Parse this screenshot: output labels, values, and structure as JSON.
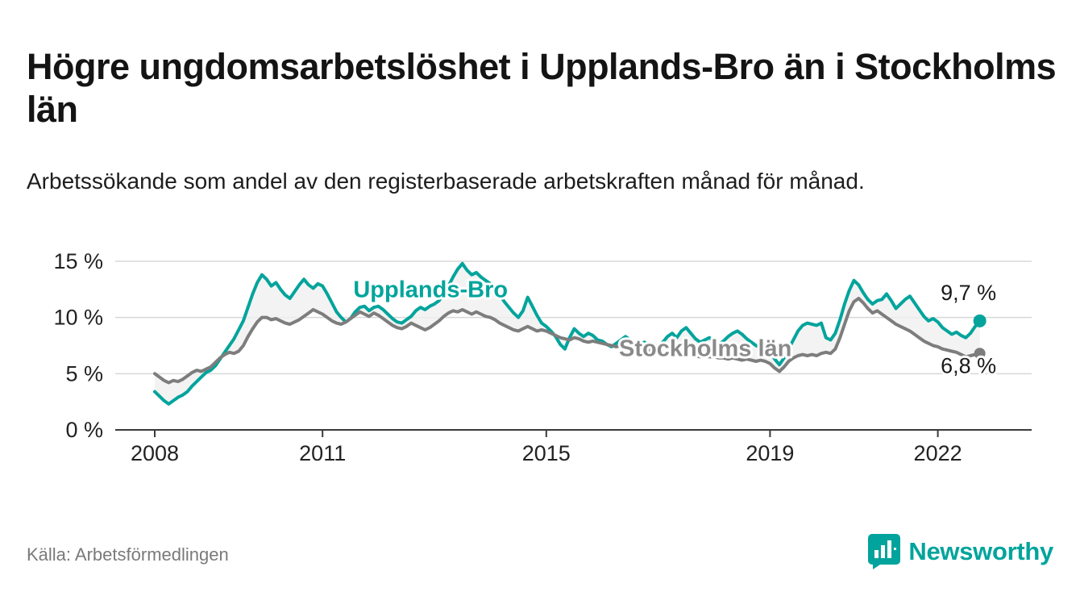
{
  "header": {
    "title": "Högre ungdomsarbetslöshet i Upplands-Bro än i Stockholms län",
    "subtitle": "Arbetssökande som andel av den registerbaserade arbetskraften månad för månad."
  },
  "footer": {
    "source": "Källa: Arbetsförmedlingen",
    "brand": "Newsworthy"
  },
  "colors": {
    "accent": "#00a49c",
    "gray_line": "#7d7d7d",
    "gray_label": "#8a8a8a",
    "grid": "#d8d8d8",
    "axis": "#3a3a3a",
    "band_fill": "#f0f0f0",
    "text_dark": "#1a1a1a"
  },
  "chart_data": {
    "type": "line",
    "title": "Högre ungdomsarbetslöshet i Upplands-Bro än i Stockholms län",
    "xlabel": "",
    "ylabel": "Arbetssökande som andel av den registerbaserade arbetskraften",
    "x_start": "2008-01",
    "frequency": "monthly",
    "ylim": [
      0,
      15.5
    ],
    "yticks": [
      0,
      5,
      10,
      15
    ],
    "ytick_labels": [
      "0 %",
      "5 %",
      "10 %",
      "15 %"
    ],
    "xticks": [
      2008,
      2011,
      2015,
      2019,
      2022
    ],
    "grid": "horizontal",
    "legend_position": "inline",
    "series": [
      {
        "name": "Upplands-Bro",
        "color": "#00a49c",
        "end_value_label": "9,7 %",
        "values": [
          3.4,
          3.0,
          2.6,
          2.3,
          2.6,
          2.9,
          3.1,
          3.4,
          3.9,
          4.3,
          4.7,
          5.1,
          5.3,
          5.7,
          6.3,
          6.9,
          7.5,
          8.1,
          8.9,
          9.7,
          10.9,
          12.1,
          13.1,
          13.8,
          13.4,
          12.8,
          13.1,
          12.5,
          12.0,
          11.7,
          12.3,
          12.9,
          13.4,
          12.9,
          12.6,
          13.0,
          12.8,
          12.1,
          11.3,
          10.5,
          10.0,
          9.6,
          9.9,
          10.5,
          10.9,
          11.0,
          10.6,
          10.9,
          11.0,
          10.7,
          10.3,
          9.9,
          9.6,
          9.5,
          9.8,
          10.1,
          10.6,
          10.9,
          10.7,
          11.0,
          11.2,
          11.5,
          12.1,
          12.8,
          13.6,
          14.3,
          14.8,
          14.2,
          13.8,
          14.0,
          13.6,
          13.3,
          13.0,
          12.5,
          12.0,
          11.4,
          10.9,
          10.4,
          10.0,
          10.6,
          11.8,
          11.0,
          10.2,
          9.5,
          9.2,
          8.8,
          8.3,
          7.6,
          7.2,
          8.2,
          9.0,
          8.6,
          8.3,
          8.6,
          8.4,
          8.0,
          7.9,
          7.6,
          7.4,
          7.7,
          8.0,
          8.3,
          8.0,
          7.7,
          7.5,
          7.8,
          7.6,
          7.4,
          7.5,
          7.8,
          8.3,
          8.6,
          8.2,
          8.8,
          9.1,
          8.6,
          8.1,
          7.8,
          8.0,
          8.2,
          7.9,
          7.6,
          7.9,
          8.3,
          8.6,
          8.8,
          8.5,
          8.1,
          7.8,
          7.5,
          7.3,
          7.6,
          7.0,
          6.3,
          5.8,
          6.4,
          7.2,
          8.0,
          8.8,
          9.3,
          9.5,
          9.4,
          9.3,
          9.5,
          8.2,
          8.0,
          8.6,
          9.8,
          11.2,
          12.4,
          13.3,
          12.9,
          12.2,
          11.6,
          11.2,
          11.5,
          11.6,
          12.1,
          11.5,
          10.8,
          11.2,
          11.6,
          11.9,
          11.3,
          10.7,
          10.1,
          9.7,
          9.9,
          9.6,
          9.1,
          8.8,
          8.5,
          8.7,
          8.4,
          8.2,
          8.6,
          9.2,
          9.7
        ]
      },
      {
        "name": "Stockholms län",
        "color": "#7d7d7d",
        "end_value_label": "6,8 %",
        "values": [
          5.0,
          4.7,
          4.4,
          4.2,
          4.4,
          4.3,
          4.5,
          4.8,
          5.1,
          5.3,
          5.2,
          5.4,
          5.6,
          6.0,
          6.4,
          6.7,
          6.9,
          6.8,
          7.0,
          7.5,
          8.3,
          9.0,
          9.6,
          10.0,
          10.0,
          9.8,
          9.9,
          9.7,
          9.5,
          9.4,
          9.6,
          9.8,
          10.1,
          10.4,
          10.7,
          10.5,
          10.3,
          10.0,
          9.7,
          9.5,
          9.4,
          9.6,
          9.9,
          10.2,
          10.5,
          10.3,
          10.1,
          10.4,
          10.2,
          9.9,
          9.6,
          9.3,
          9.1,
          9.0,
          9.2,
          9.5,
          9.3,
          9.1,
          8.9,
          9.1,
          9.4,
          9.7,
          10.1,
          10.4,
          10.6,
          10.5,
          10.7,
          10.5,
          10.3,
          10.5,
          10.3,
          10.1,
          10.0,
          9.8,
          9.5,
          9.3,
          9.1,
          8.9,
          8.8,
          9.0,
          9.2,
          9.0,
          8.8,
          8.9,
          8.8,
          8.6,
          8.4,
          8.2,
          8.1,
          8.0,
          8.2,
          8.1,
          7.9,
          7.8,
          7.9,
          7.8,
          7.7,
          7.6,
          7.5,
          7.4,
          7.5,
          7.4,
          7.3,
          7.2,
          7.1,
          7.2,
          7.1,
          7.0,
          6.9,
          6.9,
          6.8,
          6.7,
          6.8,
          6.7,
          6.6,
          6.7,
          6.6,
          6.5,
          6.6,
          6.5,
          6.5,
          6.4,
          6.4,
          6.3,
          6.4,
          6.3,
          6.2,
          6.3,
          6.2,
          6.1,
          6.2,
          6.1,
          5.9,
          5.5,
          5.2,
          5.6,
          6.1,
          6.4,
          6.6,
          6.7,
          6.6,
          6.7,
          6.6,
          6.8,
          6.9,
          6.8,
          7.2,
          8.2,
          9.4,
          10.6,
          11.4,
          11.7,
          11.3,
          10.8,
          10.4,
          10.6,
          10.3,
          10.0,
          9.7,
          9.4,
          9.2,
          9.0,
          8.8,
          8.5,
          8.2,
          7.9,
          7.7,
          7.5,
          7.4,
          7.2,
          7.1,
          7.0,
          6.9,
          6.7,
          6.5,
          6.6,
          6.7,
          6.8
        ]
      }
    ],
    "annotations": [
      {
        "text": "Upplands-Bro",
        "x": 2011.55,
        "y": 11.8,
        "color": "#00a49c",
        "bold": true,
        "size": 29,
        "anchor": "start"
      },
      {
        "text": "Stockholms län",
        "x": 2016.3,
        "y": 6.55,
        "color": "#8a8a8a",
        "bold": true,
        "size": 29,
        "anchor": "start"
      },
      {
        "text": "9,7 %",
        "x": 2022.05,
        "y": 11.55,
        "color": "#1a1a1a",
        "bold": false,
        "size": 27,
        "anchor": "start"
      },
      {
        "text": "6,8 %",
        "x": 2022.05,
        "y": 5.05,
        "color": "#1a1a1a",
        "bold": false,
        "size": 27,
        "anchor": "start"
      }
    ]
  }
}
